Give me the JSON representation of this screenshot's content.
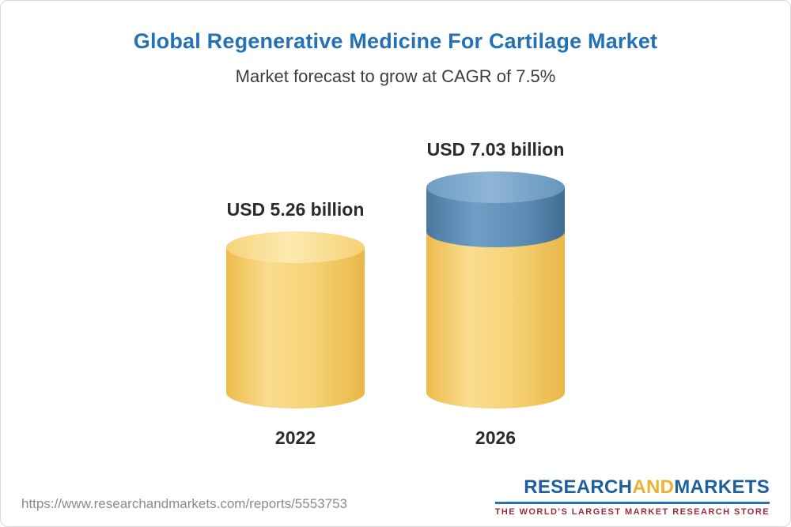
{
  "frame": {
    "border_color": "#d9d9d9",
    "background": "#ffffff"
  },
  "header": {
    "title": "Global Regenerative Medicine For Cartilage Market",
    "title_color": "#2471b5",
    "subtitle": "Market forecast to grow at CAGR of 7.5%",
    "subtitle_color": "#3d3d3d"
  },
  "chart_data": {
    "type": "bar",
    "variant": "3d-cylinder",
    "title": "Global Regenerative Medicine For Cartilage Market",
    "subtitle": "Market forecast to grow at CAGR of 7.5%",
    "cagr": "7.5%",
    "unit": "USD billion",
    "categories": [
      "2022",
      "2026"
    ],
    "ylim": [
      0,
      7.03
    ],
    "grid": false,
    "legend": false,
    "colors": {
      "gold": "#f6cd68",
      "blue": "#5b8cb8"
    },
    "bars": [
      {
        "category": "2022",
        "total": 5.26,
        "value_label": "USD 5.26 billion",
        "segments": [
          {
            "name": "market-value-2022",
            "value": 5.26,
            "color_key": "gold"
          }
        ]
      },
      {
        "category": "2026",
        "total": 7.03,
        "value_label": "USD 7.03 billion",
        "segments": [
          {
            "name": "forecast-growth",
            "value": 1.77,
            "color_key": "blue"
          },
          {
            "name": "base-market-value",
            "value": 5.26,
            "color_key": "gold"
          }
        ]
      }
    ]
  },
  "footer": {
    "url": "https://www.researchandmarkets.com/reports/5553753",
    "logo": {
      "part1": "RESEARCH",
      "part2": "AND",
      "part3": "MARKETS",
      "tagline": "THE WORLD'S LARGEST MARKET RESEARCH STORE",
      "blue": "#1e5f9e",
      "gold": "#efaf2f",
      "tagline_color": "#9e2b36"
    }
  }
}
